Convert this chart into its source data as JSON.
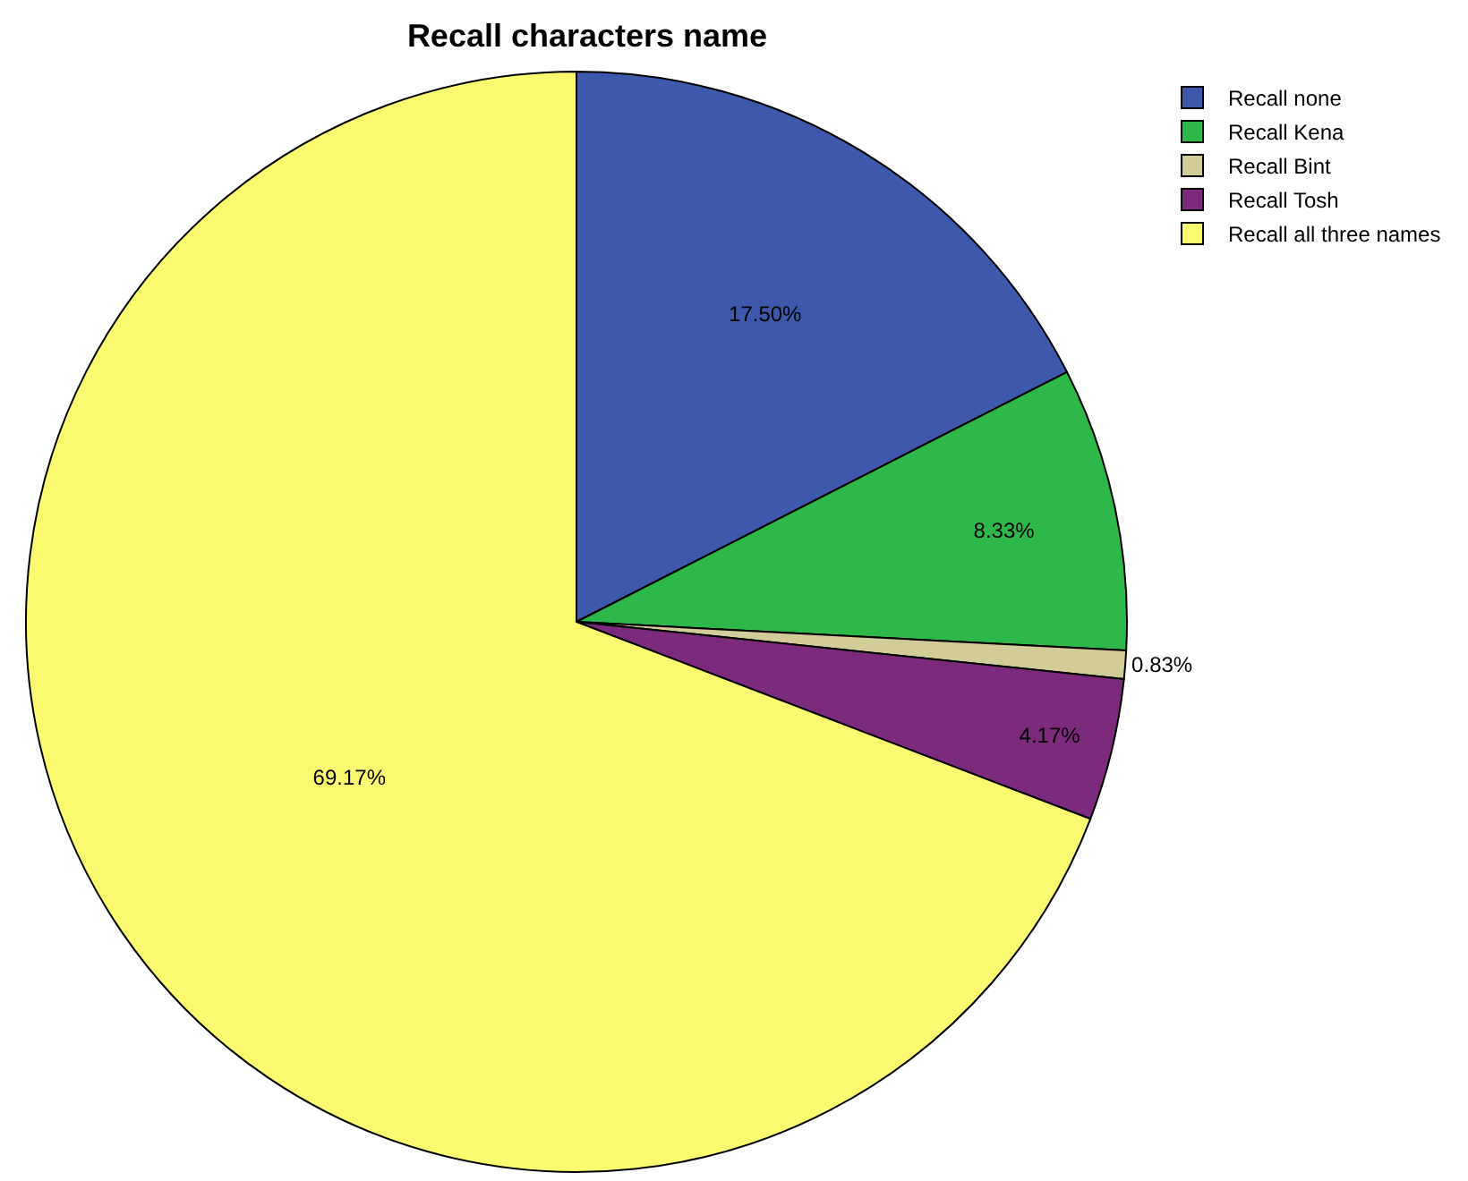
{
  "chart_data": {
    "type": "pie",
    "title": "Recall characters name",
    "categories": [
      "Recall none",
      "Recall Kena",
      "Recall Bint",
      "Recall Tosh",
      "Recall all three names"
    ],
    "values": [
      17.5,
      8.33,
      0.83,
      4.17,
      69.17
    ],
    "value_labels": [
      "17.50%",
      "8.33%",
      "0.83%",
      "4.17%",
      "69.17%"
    ],
    "colors": [
      "#3e58ac",
      "#2fb84a",
      "#d2cc99",
      "#7b2a7c",
      "#fafa70"
    ],
    "legend": "top right"
  }
}
